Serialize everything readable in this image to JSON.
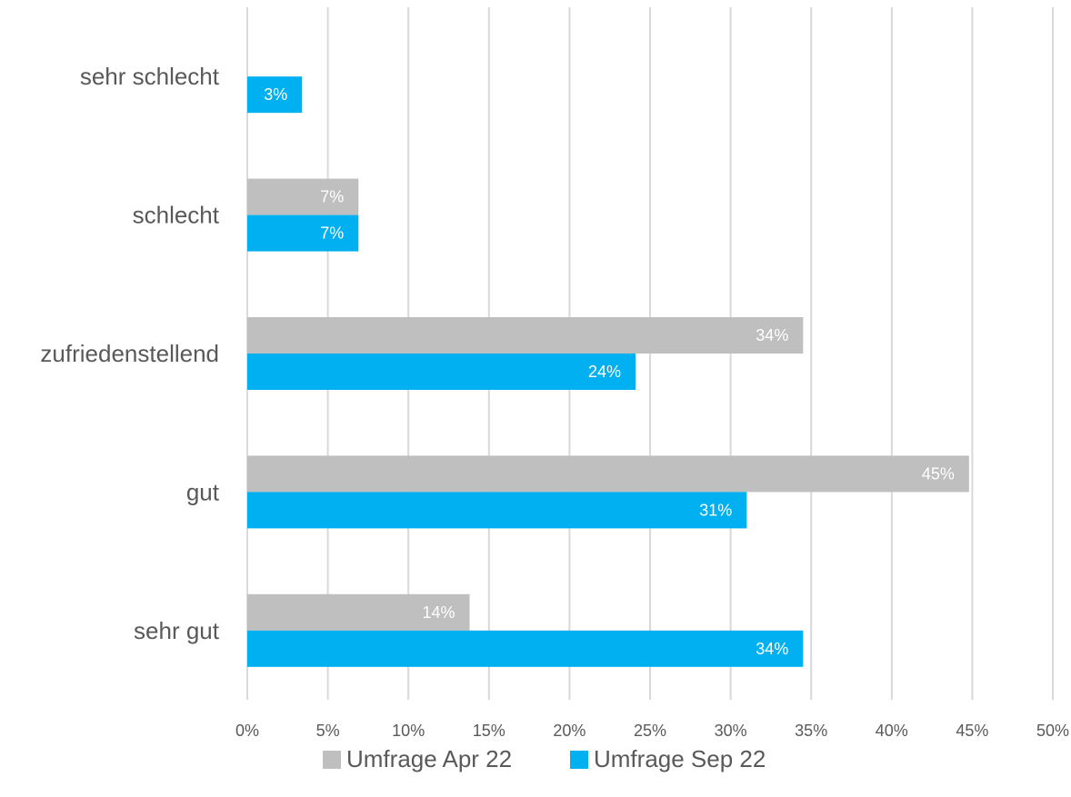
{
  "chart_data": {
    "type": "bar",
    "orientation": "horizontal",
    "title": "",
    "xlabel": "",
    "ylabel": "",
    "categories": [
      "sehr schlecht",
      "schlecht",
      "zufriedenstellend",
      "gut",
      "sehr gut"
    ],
    "series": [
      {
        "name": "Umfrage Apr 22",
        "color": "#bfbfbf",
        "values": [
          0,
          6.9,
          34.5,
          44.8,
          13.8
        ],
        "labels": [
          "",
          "7%",
          "34%",
          "45%",
          "14%"
        ]
      },
      {
        "name": "Umfrage Sep 22",
        "color": "#00b0f0",
        "values": [
          3.4,
          6.9,
          24.1,
          31.0,
          34.5
        ],
        "labels": [
          "3%",
          "7%",
          "24%",
          "31%",
          "34%"
        ]
      }
    ],
    "xlim": [
      0,
      50
    ],
    "xticks": [
      0,
      5,
      10,
      15,
      20,
      25,
      30,
      35,
      40,
      45,
      50
    ],
    "xtick_labels": [
      "0%",
      "5%",
      "10%",
      "15%",
      "20%",
      "25%",
      "30%",
      "35%",
      "40%",
      "45%",
      "50%"
    ],
    "grid": "vertical",
    "legend_position": "bottom"
  }
}
